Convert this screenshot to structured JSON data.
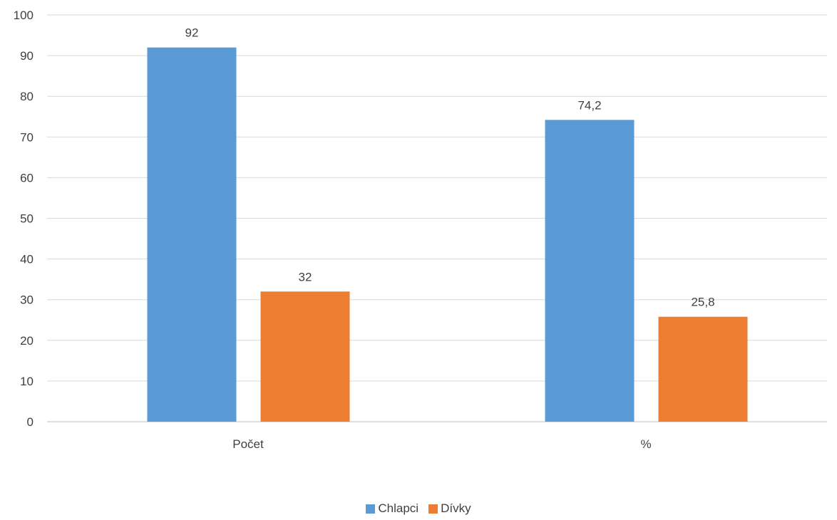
{
  "chart_data": {
    "type": "bar",
    "categories": [
      "Počet",
      "%"
    ],
    "series": [
      {
        "name": "Chlapci",
        "values": [
          92,
          74.2
        ],
        "labels": [
          "92",
          "74,2"
        ],
        "color": "#5B9BD5"
      },
      {
        "name": "Dívky",
        "values": [
          32,
          25.8
        ],
        "labels": [
          "32",
          "25,8"
        ],
        "color": "#ED7D31"
      }
    ],
    "y_ticks": [
      "0",
      "10",
      "20",
      "30",
      "40",
      "50",
      "60",
      "70",
      "80",
      "90",
      "100"
    ],
    "ylim": [
      0,
      100
    ],
    "grid": true,
    "legend_position": "bottom"
  }
}
